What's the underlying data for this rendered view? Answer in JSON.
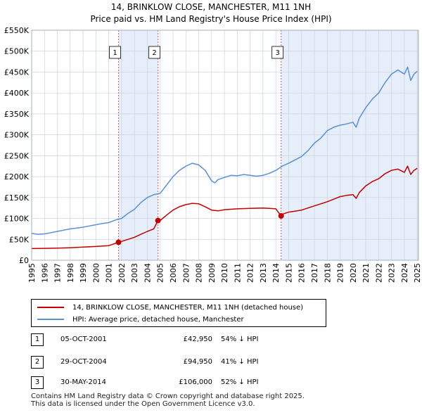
{
  "header": {
    "title_line1": "14, BRINKLOW CLOSE, MANCHESTER, M11 1NH",
    "title_line2": "Price paid vs. HM Land Registry's House Price Index (HPI)"
  },
  "colors": {
    "hpi": "#5b8fd6",
    "property": "#c00000",
    "band": "#e6eef9",
    "grid": "#c8d2e0",
    "vline": "#e05a5a"
  },
  "legend": {
    "property_label": "14, BRINKLOW CLOSE, MANCHESTER, M11 1NH (detached house)",
    "hpi_label": "HPI: Average price, detached house, Manchester"
  },
  "transactions": [
    {
      "num": "1",
      "date": "05-OCT-2001",
      "price": "£42,950",
      "hpi": "54% ↓ HPI"
    },
    {
      "num": "2",
      "date": "29-OCT-2004",
      "price": "£94,950",
      "hpi": "41% ↓ HPI"
    },
    {
      "num": "3",
      "date": "30-MAY-2014",
      "price": "£106,000",
      "hpi": "52% ↓ HPI"
    }
  ],
  "footer": {
    "line1": "Contains HM Land Registry data © Crown copyright and database right 2025.",
    "line2": "This data is licensed under the Open Government Licence v3.0."
  },
  "chart_data": {
    "type": "line",
    "title": "14, BRINKLOW CLOSE, MANCHESTER, M11 1NH — Price paid vs. HM Land Registry's House Price Index (HPI)",
    "xlabel": "",
    "ylabel": "",
    "xlim": [
      1995,
      2025.1
    ],
    "ylim": [
      0,
      550000
    ],
    "grid": true,
    "y_ticks": [
      {
        "value": 0,
        "label": "£0"
      },
      {
        "value": 50000,
        "label": "£50K"
      },
      {
        "value": 100000,
        "label": "£100K"
      },
      {
        "value": 150000,
        "label": "£150K"
      },
      {
        "value": 200000,
        "label": "£200K"
      },
      {
        "value": 250000,
        "label": "£250K"
      },
      {
        "value": 300000,
        "label": "£300K"
      },
      {
        "value": 350000,
        "label": "£350K"
      },
      {
        "value": 400000,
        "label": "£400K"
      },
      {
        "value": 450000,
        "label": "£450K"
      },
      {
        "value": 500000,
        "label": "£500K"
      },
      {
        "value": 550000,
        "label": "£550K"
      }
    ],
    "x_ticks": [
      "1995",
      "1996",
      "1997",
      "1998",
      "1999",
      "2000",
      "2001",
      "2002",
      "2003",
      "2004",
      "2005",
      "2006",
      "2007",
      "2008",
      "2009",
      "2010",
      "2011",
      "2012",
      "2013",
      "2014",
      "2015",
      "2016",
      "2017",
      "2018",
      "2019",
      "2020",
      "2021",
      "2022",
      "2023",
      "2024",
      "2025"
    ],
    "shaded_ranges": [
      [
        2001.76,
        2004.83
      ],
      [
        2014.41,
        2025.1
      ]
    ],
    "markers": [
      {
        "label": "1",
        "x": 2001.76,
        "y": 42950
      },
      {
        "label": "2",
        "x": 2004.83,
        "y": 94950
      },
      {
        "label": "3",
        "x": 2014.41,
        "y": 106000
      }
    ],
    "series": [
      {
        "name": "HPI: Average price, detached house, Manchester",
        "color": "#5b8fd6",
        "x": [
          1995.0,
          1995.5,
          1996.0,
          1996.5,
          1997.0,
          1997.5,
          1998.0,
          1998.5,
          1999.0,
          1999.5,
          2000.0,
          2000.5,
          2001.0,
          2001.5,
          2002.0,
          2002.5,
          2003.0,
          2003.5,
          2004.0,
          2004.5,
          2005.0,
          2005.5,
          2006.0,
          2006.5,
          2007.0,
          2007.5,
          2008.0,
          2008.5,
          2009.0,
          2009.25,
          2009.5,
          2010.0,
          2010.5,
          2011.0,
          2011.5,
          2012.0,
          2012.5,
          2013.0,
          2013.5,
          2014.0,
          2014.5,
          2015.0,
          2015.5,
          2016.0,
          2016.5,
          2017.0,
          2017.5,
          2018.0,
          2018.5,
          2019.0,
          2019.5,
          2020.0,
          2020.25,
          2020.5,
          2021.0,
          2021.5,
          2022.0,
          2022.5,
          2023.0,
          2023.5,
          2024.0,
          2024.25,
          2024.5,
          2024.75,
          2025.0
        ],
        "values": [
          64000,
          62000,
          63000,
          66000,
          69000,
          72000,
          75000,
          77000,
          79000,
          82000,
          85000,
          88000,
          90000,
          96000,
          100000,
          112000,
          122000,
          138000,
          150000,
          157000,
          160000,
          180000,
          200000,
          215000,
          225000,
          232000,
          228000,
          215000,
          190000,
          185000,
          193000,
          198000,
          203000,
          202000,
          205000,
          203000,
          201000,
          203000,
          208000,
          215000,
          225000,
          232000,
          240000,
          248000,
          262000,
          280000,
          292000,
          310000,
          318000,
          323000,
          326000,
          330000,
          318000,
          340000,
          365000,
          385000,
          400000,
          425000,
          445000,
          455000,
          445000,
          462000,
          430000,
          445000,
          452000
        ]
      },
      {
        "name": "14, BRINKLOW CLOSE, MANCHESTER, M11 1NH (detached house)",
        "color": "#c00000",
        "x": [
          1995.0,
          1996.0,
          1997.0,
          1998.0,
          1999.0,
          2000.0,
          2001.0,
          2001.76,
          2002.0,
          2002.5,
          2003.0,
          2003.5,
          2004.0,
          2004.5,
          2004.83,
          2005.0,
          2005.5,
          2006.0,
          2006.5,
          2007.0,
          2007.5,
          2008.0,
          2008.5,
          2009.0,
          2009.5,
          2010.0,
          2011.0,
          2012.0,
          2013.0,
          2013.5,
          2014.0,
          2014.41,
          2014.5,
          2015.0,
          2016.0,
          2017.0,
          2018.0,
          2019.0,
          2019.5,
          2020.0,
          2020.25,
          2020.5,
          2021.0,
          2021.5,
          2022.0,
          2022.5,
          2023.0,
          2023.5,
          2024.0,
          2024.25,
          2024.5,
          2024.75,
          2025.0
        ],
        "values": [
          28000,
          28500,
          29000,
          30000,
          31500,
          33000,
          35000,
          42950,
          45000,
          50000,
          55000,
          62000,
          69000,
          75000,
          94950,
          95000,
          108000,
          120000,
          128000,
          133000,
          136000,
          135000,
          128000,
          120000,
          118000,
          121000,
          123000,
          124000,
          125000,
          124000,
          123000,
          106000,
          110000,
          115000,
          120000,
          130000,
          140000,
          152000,
          155000,
          157000,
          148000,
          162000,
          178000,
          188000,
          195000,
          207000,
          215000,
          218000,
          210000,
          225000,
          205000,
          215000,
          220000
        ]
      }
    ]
  }
}
